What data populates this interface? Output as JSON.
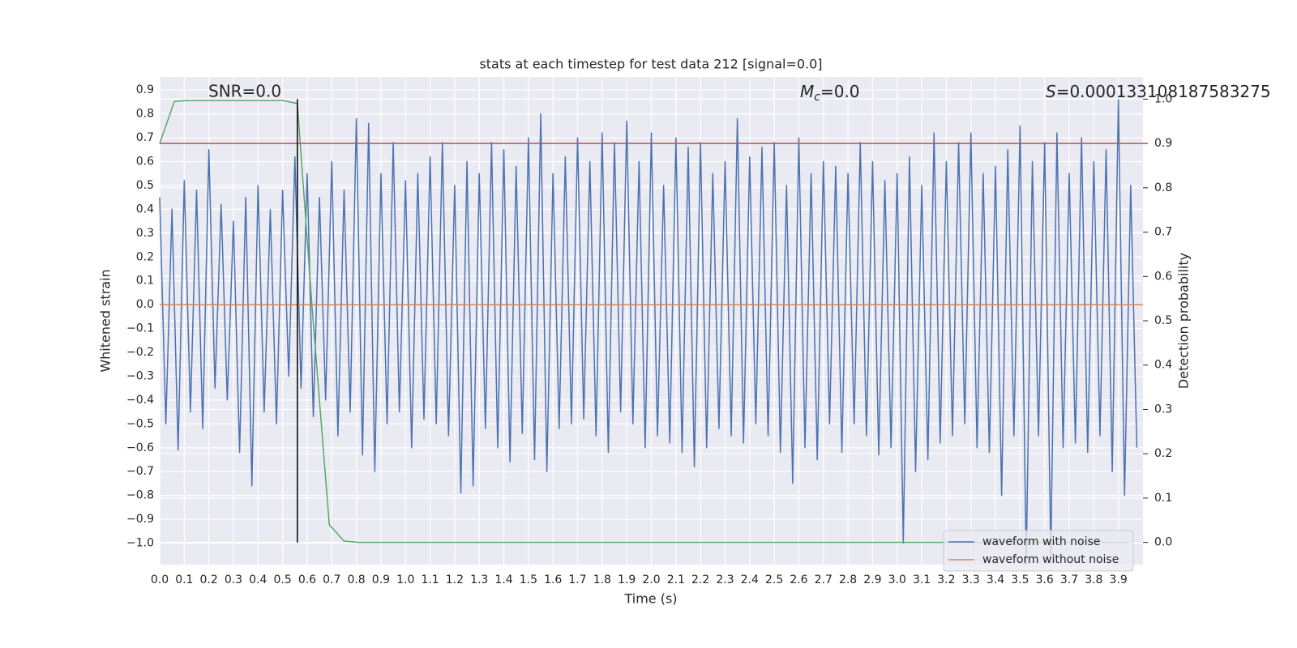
{
  "chart_data": {
    "type": "line",
    "title": "stats at each timestep for test data 212 [signal=0.0]",
    "xlabel": "Time (s)",
    "ylabel": "Whitened strain",
    "y2label": "Detection probability",
    "annotations": [
      {
        "text": "SNR=0.0"
      },
      {
        "symbol": "M",
        "subscript": "c",
        "text": "=0.0"
      },
      {
        "symbol": "S",
        "text": "=0.000133108187583275"
      }
    ],
    "xlim": [
      0,
      4
    ],
    "ylim": [
      -1.09,
      0.955
    ],
    "y2lim": [
      -0.05,
      1.05
    ],
    "xticks": [
      {
        "value": 0,
        "label": "0.0"
      },
      0.1,
      0.2,
      0.3,
      0.4,
      0.5,
      0.6,
      0.7,
      0.8,
      0.9,
      {
        "value": 1,
        "label": "1.0"
      },
      1.1,
      1.2,
      1.3,
      1.4,
      1.5,
      1.6,
      1.7,
      1.8,
      1.9,
      {
        "value": 2,
        "label": "2.0"
      },
      2.1,
      2.2,
      2.3,
      2.4,
      2.5,
      2.6,
      2.7,
      2.8,
      2.9,
      {
        "value": 3,
        "label": "3.0"
      },
      3.1,
      3.2,
      3.3,
      3.4,
      3.5,
      3.6,
      3.7,
      3.8,
      3.9
    ],
    "yticks": [
      0.9,
      0.8,
      0.7,
      0.6,
      0.5,
      0.4,
      0.3,
      0.2,
      0.1,
      {
        "value": 0,
        "label": "0.0"
      },
      {
        "value": -0.1,
        "label": "−0.1"
      },
      {
        "value": -0.2,
        "label": "−0.2"
      },
      {
        "value": -0.3,
        "label": "−0.3"
      },
      {
        "value": -0.4,
        "label": "−0.4"
      },
      {
        "value": -0.5,
        "label": "−0.5"
      },
      {
        "value": -0.6,
        "label": "−0.6"
      },
      {
        "value": -0.7,
        "label": "−0.7"
      },
      {
        "value": -0.8,
        "label": "−0.8"
      },
      {
        "value": -0.9,
        "label": "−0.9"
      },
      {
        "value": -1,
        "label": "−1.0"
      }
    ],
    "y2ticks": [
      {
        "value": 0,
        "label": "0.0"
      },
      0.1,
      0.2,
      0.3,
      0.4,
      0.5,
      0.6,
      0.7,
      0.8,
      0.9,
      {
        "value": 1,
        "label": "1.0"
      }
    ],
    "grid": true,
    "legend": "lower right",
    "series": [
      {
        "name": "waveform with noise",
        "color": "#4c72b0",
        "x": [
          0,
          0.025,
          0.05,
          0.075,
          0.1,
          0.125,
          0.15,
          0.175,
          0.2,
          0.225,
          0.25,
          0.275,
          0.3,
          0.325,
          0.35,
          0.375,
          0.4,
          0.425,
          0.45,
          0.475,
          0.5,
          0.525,
          0.55,
          0.575,
          0.6,
          0.625,
          0.65,
          0.675,
          0.7,
          0.725,
          0.75,
          0.775,
          0.8,
          0.825,
          0.85,
          0.875,
          0.9,
          0.925,
          0.95,
          0.975,
          1,
          1.025,
          1.05,
          1.075,
          1.1,
          1.125,
          1.15,
          1.175,
          1.2,
          1.225,
          1.25,
          1.275,
          1.3,
          1.325,
          1.35,
          1.375,
          1.4,
          1.425,
          1.45,
          1.475,
          1.5,
          1.525,
          1.55,
          1.575,
          1.6,
          1.625,
          1.65,
          1.675,
          1.7,
          1.725,
          1.75,
          1.775,
          1.8,
          1.825,
          1.85,
          1.875,
          1.9,
          1.925,
          1.95,
          1.975,
          2,
          2.025,
          2.05,
          2.075,
          2.1,
          2.125,
          2.15,
          2.175,
          2.2,
          2.225,
          2.25,
          2.275,
          2.3,
          2.325,
          2.35,
          2.375,
          2.4,
          2.425,
          2.45,
          2.475,
          2.5,
          2.525,
          2.55,
          2.575,
          2.6,
          2.625,
          2.65,
          2.675,
          2.7,
          2.725,
          2.75,
          2.775,
          2.8,
          2.825,
          2.85,
          2.875,
          2.9,
          2.925,
          2.95,
          2.975,
          3,
          3.025,
          3.05,
          3.075,
          3.1,
          3.125,
          3.15,
          3.175,
          3.2,
          3.225,
          3.25,
          3.275,
          3.3,
          3.325,
          3.35,
          3.375,
          3.4,
          3.425,
          3.45,
          3.475,
          3.5,
          3.525,
          3.55,
          3.575,
          3.6,
          3.625,
          3.65,
          3.675,
          3.7,
          3.725,
          3.75,
          3.775,
          3.8,
          3.825,
          3.85,
          3.875,
          3.9,
          3.925,
          3.95,
          3.975
        ],
        "values": [
          0.45,
          -0.5,
          0.4,
          -0.61,
          0.52,
          -0.45,
          0.48,
          -0.52,
          0.65,
          -0.35,
          0.42,
          -0.4,
          0.35,
          -0.62,
          0.45,
          -0.76,
          0.5,
          -0.45,
          0.4,
          -0.5,
          0.48,
          -0.3,
          0.62,
          -0.35,
          0.55,
          -0.47,
          0.45,
          -0.4,
          0.6,
          -0.55,
          0.48,
          -0.45,
          0.78,
          -0.63,
          0.76,
          -0.7,
          0.55,
          -0.5,
          0.68,
          -0.45,
          0.52,
          -0.6,
          0.55,
          -0.48,
          0.62,
          -0.5,
          0.68,
          -0.55,
          0.5,
          -0.79,
          0.6,
          -0.76,
          0.55,
          -0.52,
          0.68,
          -0.6,
          0.65,
          -0.66,
          0.58,
          -0.54,
          0.7,
          -0.65,
          0.8,
          -0.7,
          0.55,
          -0.52,
          0.62,
          -0.5,
          0.7,
          -0.48,
          0.6,
          -0.55,
          0.72,
          -0.62,
          0.68,
          -0.45,
          0.77,
          -0.5,
          0.6,
          -0.6,
          0.72,
          -0.55,
          0.5,
          -0.58,
          0.7,
          -0.62,
          0.66,
          -0.68,
          0.68,
          -0.6,
          0.55,
          -0.52,
          0.6,
          -0.55,
          0.78,
          -0.58,
          0.62,
          -0.5,
          0.66,
          -0.55,
          0.68,
          -0.62,
          0.5,
          -0.75,
          0.7,
          -0.6,
          0.55,
          -0.65,
          0.6,
          -0.5,
          0.58,
          -0.62,
          0.55,
          -0.5,
          0.68,
          -0.55,
          0.6,
          -0.63,
          0.52,
          -0.6,
          0.55,
          -1.0,
          0.62,
          -0.7,
          0.5,
          -0.65,
          0.72,
          -0.58,
          0.6,
          -0.55,
          0.68,
          -0.5,
          0.72,
          -0.6,
          0.55,
          -0.62,
          0.58,
          -0.8,
          0.65,
          -0.55,
          0.75,
          -1.09,
          0.6,
          -0.55,
          0.68,
          -1.05,
          0.72,
          -0.6,
          0.55,
          -0.58,
          0.7,
          -0.62,
          0.6,
          -0.55,
          0.65,
          -0.7,
          0.86,
          -0.8,
          0.5,
          -0.6
        ]
      },
      {
        "name": "waveform without noise",
        "color": "#dd8452",
        "x": [
          0,
          4
        ],
        "values": [
          0,
          0
        ]
      },
      {
        "color": "#55a868",
        "axis": "y2",
        "x": [
          0,
          0.06,
          0.12,
          0.5,
          0.56,
          0.62,
          0.69,
          0.75,
          0.81,
          3.94
        ],
        "values": [
          0.9,
          0.995,
          0.997,
          0.997,
          0.99,
          0.53,
          0.04,
          0.003,
          0,
          0
        ]
      }
    ],
    "threshold": {
      "y2": 0.9,
      "color": "#c44e52"
    },
    "vline": {
      "x": 0.56,
      "y2min": 0,
      "y2max": 1,
      "color": "#000000"
    }
  }
}
